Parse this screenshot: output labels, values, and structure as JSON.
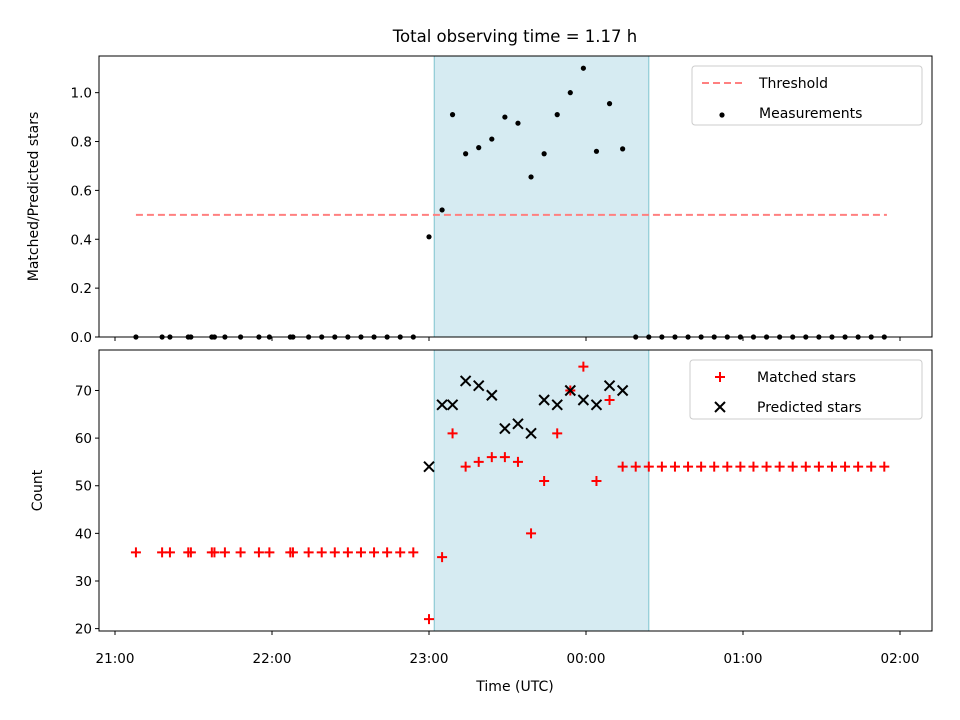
{
  "figure": {
    "title": "Total observing time = 1.17 h",
    "xlabel": "Time (UTC)",
    "x_ticks": [
      "21:00",
      "22:00",
      "23:00",
      "00:00",
      "01:00",
      "02:00"
    ],
    "observing_window": [
      "23:02",
      "00:24"
    ],
    "window_color": "#add8e6"
  },
  "chart_data": [
    {
      "type": "scatter",
      "title": "Total observing time = 1.17 h",
      "xlabel": "",
      "ylabel": "Matched/Predicted stars",
      "ylim": [
        0,
        1.15
      ],
      "y_ticks": [
        "0.0",
        "0.2",
        "0.4",
        "0.6",
        "0.8",
        "1.0"
      ],
      "legend": "top-right",
      "series": [
        {
          "name": "Threshold",
          "kind": "dashed-line",
          "color": "#ff8080",
          "x": [
            "21:08",
            "01:55"
          ],
          "y": [
            0.5,
            0.5
          ]
        },
        {
          "name": "Measurements",
          "kind": "dot",
          "color": "#000000",
          "points": [
            [
              "21:08",
              0.0
            ],
            [
              "21:18",
              0.0
            ],
            [
              "21:21",
              0.0
            ],
            [
              "21:28",
              0.0
            ],
            [
              "21:29",
              0.0
            ],
            [
              "21:37",
              0.0
            ],
            [
              "21:38",
              0.0
            ],
            [
              "21:42",
              0.0
            ],
            [
              "21:48",
              0.0
            ],
            [
              "21:55",
              0.0
            ],
            [
              "21:59",
              0.0
            ],
            [
              "22:07",
              0.0
            ],
            [
              "22:08",
              0.0
            ],
            [
              "22:14",
              0.0
            ],
            [
              "22:19",
              0.0
            ],
            [
              "22:24",
              0.0
            ],
            [
              "22:29",
              0.0
            ],
            [
              "22:34",
              0.0
            ],
            [
              "22:39",
              0.0
            ],
            [
              "22:44",
              0.0
            ],
            [
              "22:49",
              0.0
            ],
            [
              "22:54",
              0.0
            ],
            [
              "23:00",
              0.41
            ],
            [
              "23:05",
              0.52
            ],
            [
              "23:09",
              0.91
            ],
            [
              "23:14",
              0.75
            ],
            [
              "23:19",
              0.775
            ],
            [
              "23:24",
              0.81
            ],
            [
              "23:29",
              0.9
            ],
            [
              "23:34",
              0.875
            ],
            [
              "23:39",
              0.655
            ],
            [
              "23:44",
              0.75
            ],
            [
              "23:49",
              0.91
            ],
            [
              "23:54",
              1.0
            ],
            [
              "23:59",
              1.1
            ],
            [
              "00:04",
              0.76
            ],
            [
              "00:09",
              0.955
            ],
            [
              "00:14",
              0.77
            ],
            [
              "00:19",
              0.0
            ],
            [
              "00:24",
              0.0
            ],
            [
              "00:29",
              0.0
            ],
            [
              "00:34",
              0.0
            ],
            [
              "00:39",
              0.0
            ],
            [
              "00:44",
              0.0
            ],
            [
              "00:49",
              0.0
            ],
            [
              "00:54",
              0.0
            ],
            [
              "00:59",
              0.0
            ],
            [
              "01:04",
              0.0
            ],
            [
              "01:09",
              0.0
            ],
            [
              "01:14",
              0.0
            ],
            [
              "01:19",
              0.0
            ],
            [
              "01:24",
              0.0
            ],
            [
              "01:29",
              0.0
            ],
            [
              "01:34",
              0.0
            ],
            [
              "01:39",
              0.0
            ],
            [
              "01:44",
              0.0
            ],
            [
              "01:49",
              0.0
            ],
            [
              "01:54",
              0.0
            ]
          ]
        }
      ]
    },
    {
      "type": "scatter",
      "title": "",
      "xlabel": "Time (UTC)",
      "ylabel": "Count",
      "ylim": [
        19.5,
        78.5
      ],
      "y_ticks": [
        "20",
        "30",
        "40",
        "50",
        "60",
        "70"
      ],
      "legend": "top-right",
      "series": [
        {
          "name": "Matched stars",
          "kind": "plus",
          "color": "#ff0000",
          "points": [
            [
              "21:08",
              36
            ],
            [
              "21:18",
              36
            ],
            [
              "21:21",
              36
            ],
            [
              "21:28",
              36
            ],
            [
              "21:29",
              36
            ],
            [
              "21:37",
              36
            ],
            [
              "21:38",
              36
            ],
            [
              "21:42",
              36
            ],
            [
              "21:48",
              36
            ],
            [
              "21:55",
              36
            ],
            [
              "21:59",
              36
            ],
            [
              "22:07",
              36
            ],
            [
              "22:08",
              36
            ],
            [
              "22:14",
              36
            ],
            [
              "22:19",
              36
            ],
            [
              "22:24",
              36
            ],
            [
              "22:29",
              36
            ],
            [
              "22:34",
              36
            ],
            [
              "22:39",
              36
            ],
            [
              "22:44",
              36
            ],
            [
              "22:49",
              36
            ],
            [
              "22:54",
              36
            ],
            [
              "23:00",
              22
            ],
            [
              "23:05",
              35
            ],
            [
              "23:09",
              61
            ],
            [
              "23:14",
              54
            ],
            [
              "23:19",
              55
            ],
            [
              "23:24",
              56
            ],
            [
              "23:29",
              56
            ],
            [
              "23:34",
              55
            ],
            [
              "23:39",
              40
            ],
            [
              "23:44",
              51
            ],
            [
              "23:49",
              61
            ],
            [
              "23:54",
              70
            ],
            [
              "23:59",
              75
            ],
            [
              "00:04",
              51
            ],
            [
              "00:09",
              68
            ],
            [
              "00:14",
              54
            ],
            [
              "00:19",
              54
            ],
            [
              "00:24",
              54
            ],
            [
              "00:29",
              54
            ],
            [
              "00:34",
              54
            ],
            [
              "00:39",
              54
            ],
            [
              "00:44",
              54
            ],
            [
              "00:49",
              54
            ],
            [
              "00:54",
              54
            ],
            [
              "00:59",
              54
            ],
            [
              "01:04",
              54
            ],
            [
              "01:09",
              54
            ],
            [
              "01:14",
              54
            ],
            [
              "01:19",
              54
            ],
            [
              "01:24",
              54
            ],
            [
              "01:29",
              54
            ],
            [
              "01:34",
              54
            ],
            [
              "01:39",
              54
            ],
            [
              "01:44",
              54
            ],
            [
              "01:49",
              54
            ],
            [
              "01:54",
              54
            ]
          ]
        },
        {
          "name": "Predicted stars",
          "kind": "x",
          "color": "#000000",
          "points": [
            [
              "23:00",
              54
            ],
            [
              "23:05",
              67
            ],
            [
              "23:09",
              67
            ],
            [
              "23:14",
              72
            ],
            [
              "23:19",
              71
            ],
            [
              "23:24",
              69
            ],
            [
              "23:29",
              62
            ],
            [
              "23:34",
              63
            ],
            [
              "23:39",
              61
            ],
            [
              "23:44",
              68
            ],
            [
              "23:49",
              67
            ],
            [
              "23:54",
              70
            ],
            [
              "23:59",
              68
            ],
            [
              "00:04",
              67
            ],
            [
              "00:09",
              71
            ],
            [
              "00:14",
              70
            ]
          ]
        }
      ]
    }
  ]
}
